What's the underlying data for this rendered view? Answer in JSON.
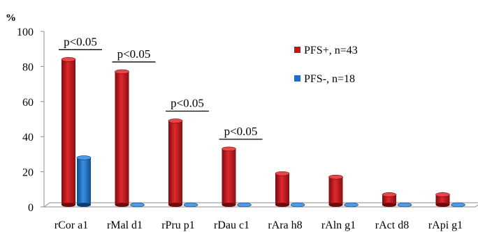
{
  "chart_data": {
    "type": "bar",
    "ylabel": "%",
    "ylim": [
      0,
      100
    ],
    "yticks": [
      0,
      20,
      40,
      60,
      80,
      100
    ],
    "categories": [
      "rCor a1",
      "rMal d1",
      "rPru p1",
      "rDau c1",
      "rAra h8",
      "rAln g1",
      "rAct d8",
      "rApi g1"
    ],
    "series": [
      {
        "name": "PFS+, n=43",
        "color": "#c0171c",
        "values": [
          84,
          77,
          49,
          33,
          19,
          17,
          7,
          7
        ]
      },
      {
        "name": "PFS-, n=18",
        "color": "#1e6ec2",
        "values": [
          28,
          0,
          0,
          0,
          0,
          0,
          0,
          0
        ]
      }
    ],
    "annotations": [
      {
        "text": "p<0.05",
        "category": "rCor a1"
      },
      {
        "text": "p<0.05",
        "category": "rMal d1"
      },
      {
        "text": "p<0.05",
        "category": "rPru p1"
      },
      {
        "text": "p<0.05",
        "category": "rDau c1"
      }
    ],
    "legend_position": "right",
    "grid": false
  }
}
